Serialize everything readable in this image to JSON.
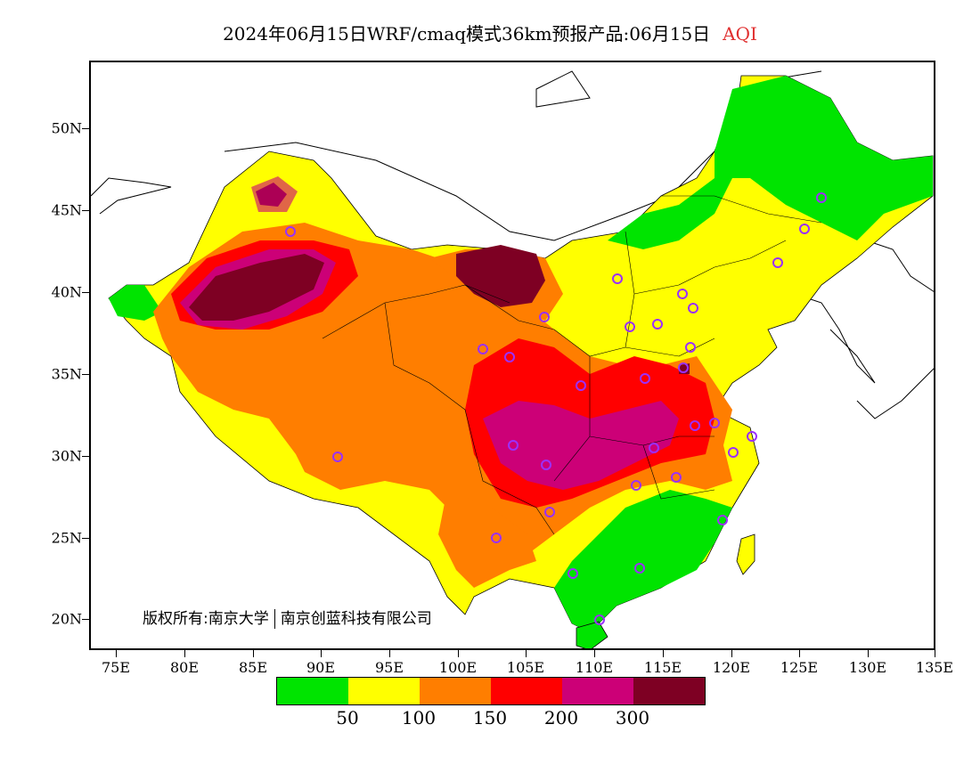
{
  "title": {
    "main": "2024年06月15日WRF/cmaq模式36km预报产品:06月15日",
    "variable": "AQI",
    "variable_color": "#e03030"
  },
  "axes": {
    "lat_labels": [
      "50N",
      "45N",
      "40N",
      "35N",
      "30N",
      "25N",
      "20N"
    ],
    "lon_labels": [
      "75E",
      "80E",
      "85E",
      "90E",
      "95E",
      "100E",
      "105E",
      "110E",
      "115E",
      "120E",
      "125E",
      "130E",
      "135E"
    ]
  },
  "copyright": {
    "owner1": "版权所有:南京大学",
    "owner2": "南京创蓝科技有限公司"
  },
  "legend": {
    "colors": [
      "#00e400",
      "#ffff00",
      "#ff7e00",
      "#ff0000",
      "#cc0077",
      "#7e0023"
    ],
    "labels": [
      "50",
      "100",
      "150",
      "200",
      "300"
    ]
  }
}
